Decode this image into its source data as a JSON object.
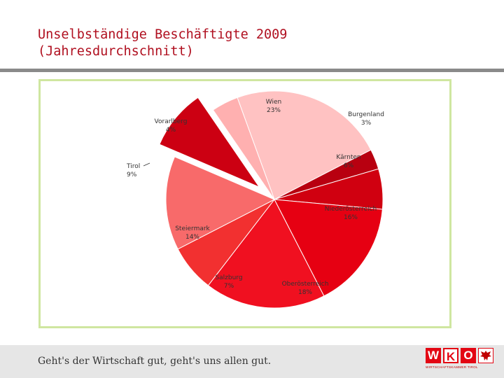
{
  "header": {
    "title_line1": "Unselbständige Beschäftigte 2009",
    "title_line2": "(Jahresdurchschnitt)"
  },
  "chart_data": {
    "type": "pie",
    "title": "Unselbständige Beschäftigte 2009 (Jahresdurchschnitt)",
    "slices": [
      {
        "name": "Wien",
        "label": "Wien\n23%",
        "value": 23,
        "color": "#ffc2c2"
      },
      {
        "name": "Burgenland",
        "label": "Burgenland\n3%",
        "value": 3,
        "color": "#b80010"
      },
      {
        "name": "Kärnten",
        "label": "Kärnten\n6%",
        "value": 6,
        "color": "#d00010"
      },
      {
        "name": "Niederösterreich",
        "label": "Niederösterreich\n16%",
        "value": 16,
        "color": "#e60012"
      },
      {
        "name": "Oberösterreich",
        "label": "Oberösterreich\n18%",
        "value": 18,
        "color": "#f01020"
      },
      {
        "name": "Salzburg",
        "label": "Salzburg\n7%",
        "value": 7,
        "color": "#f23030"
      },
      {
        "name": "Steiermark",
        "label": "Steiermark\n14%",
        "value": 14,
        "color": "#f86a6a"
      },
      {
        "name": "Tirol",
        "label": "Tirol\n9%",
        "value": 9,
        "color": "#cc0012",
        "exploded": true
      },
      {
        "name": "Vorarlberg",
        "label": "Vorarlberg\n4%",
        "value": 4,
        "color": "#ffb0b0"
      }
    ]
  },
  "footer": {
    "slogan": "Geht's der Wirtschaft gut, geht's uns allen gut.",
    "logo_letters": [
      "W",
      "K",
      "O"
    ],
    "logo_tag": "WIRTSCHAFTSKAMMER TIROL"
  }
}
